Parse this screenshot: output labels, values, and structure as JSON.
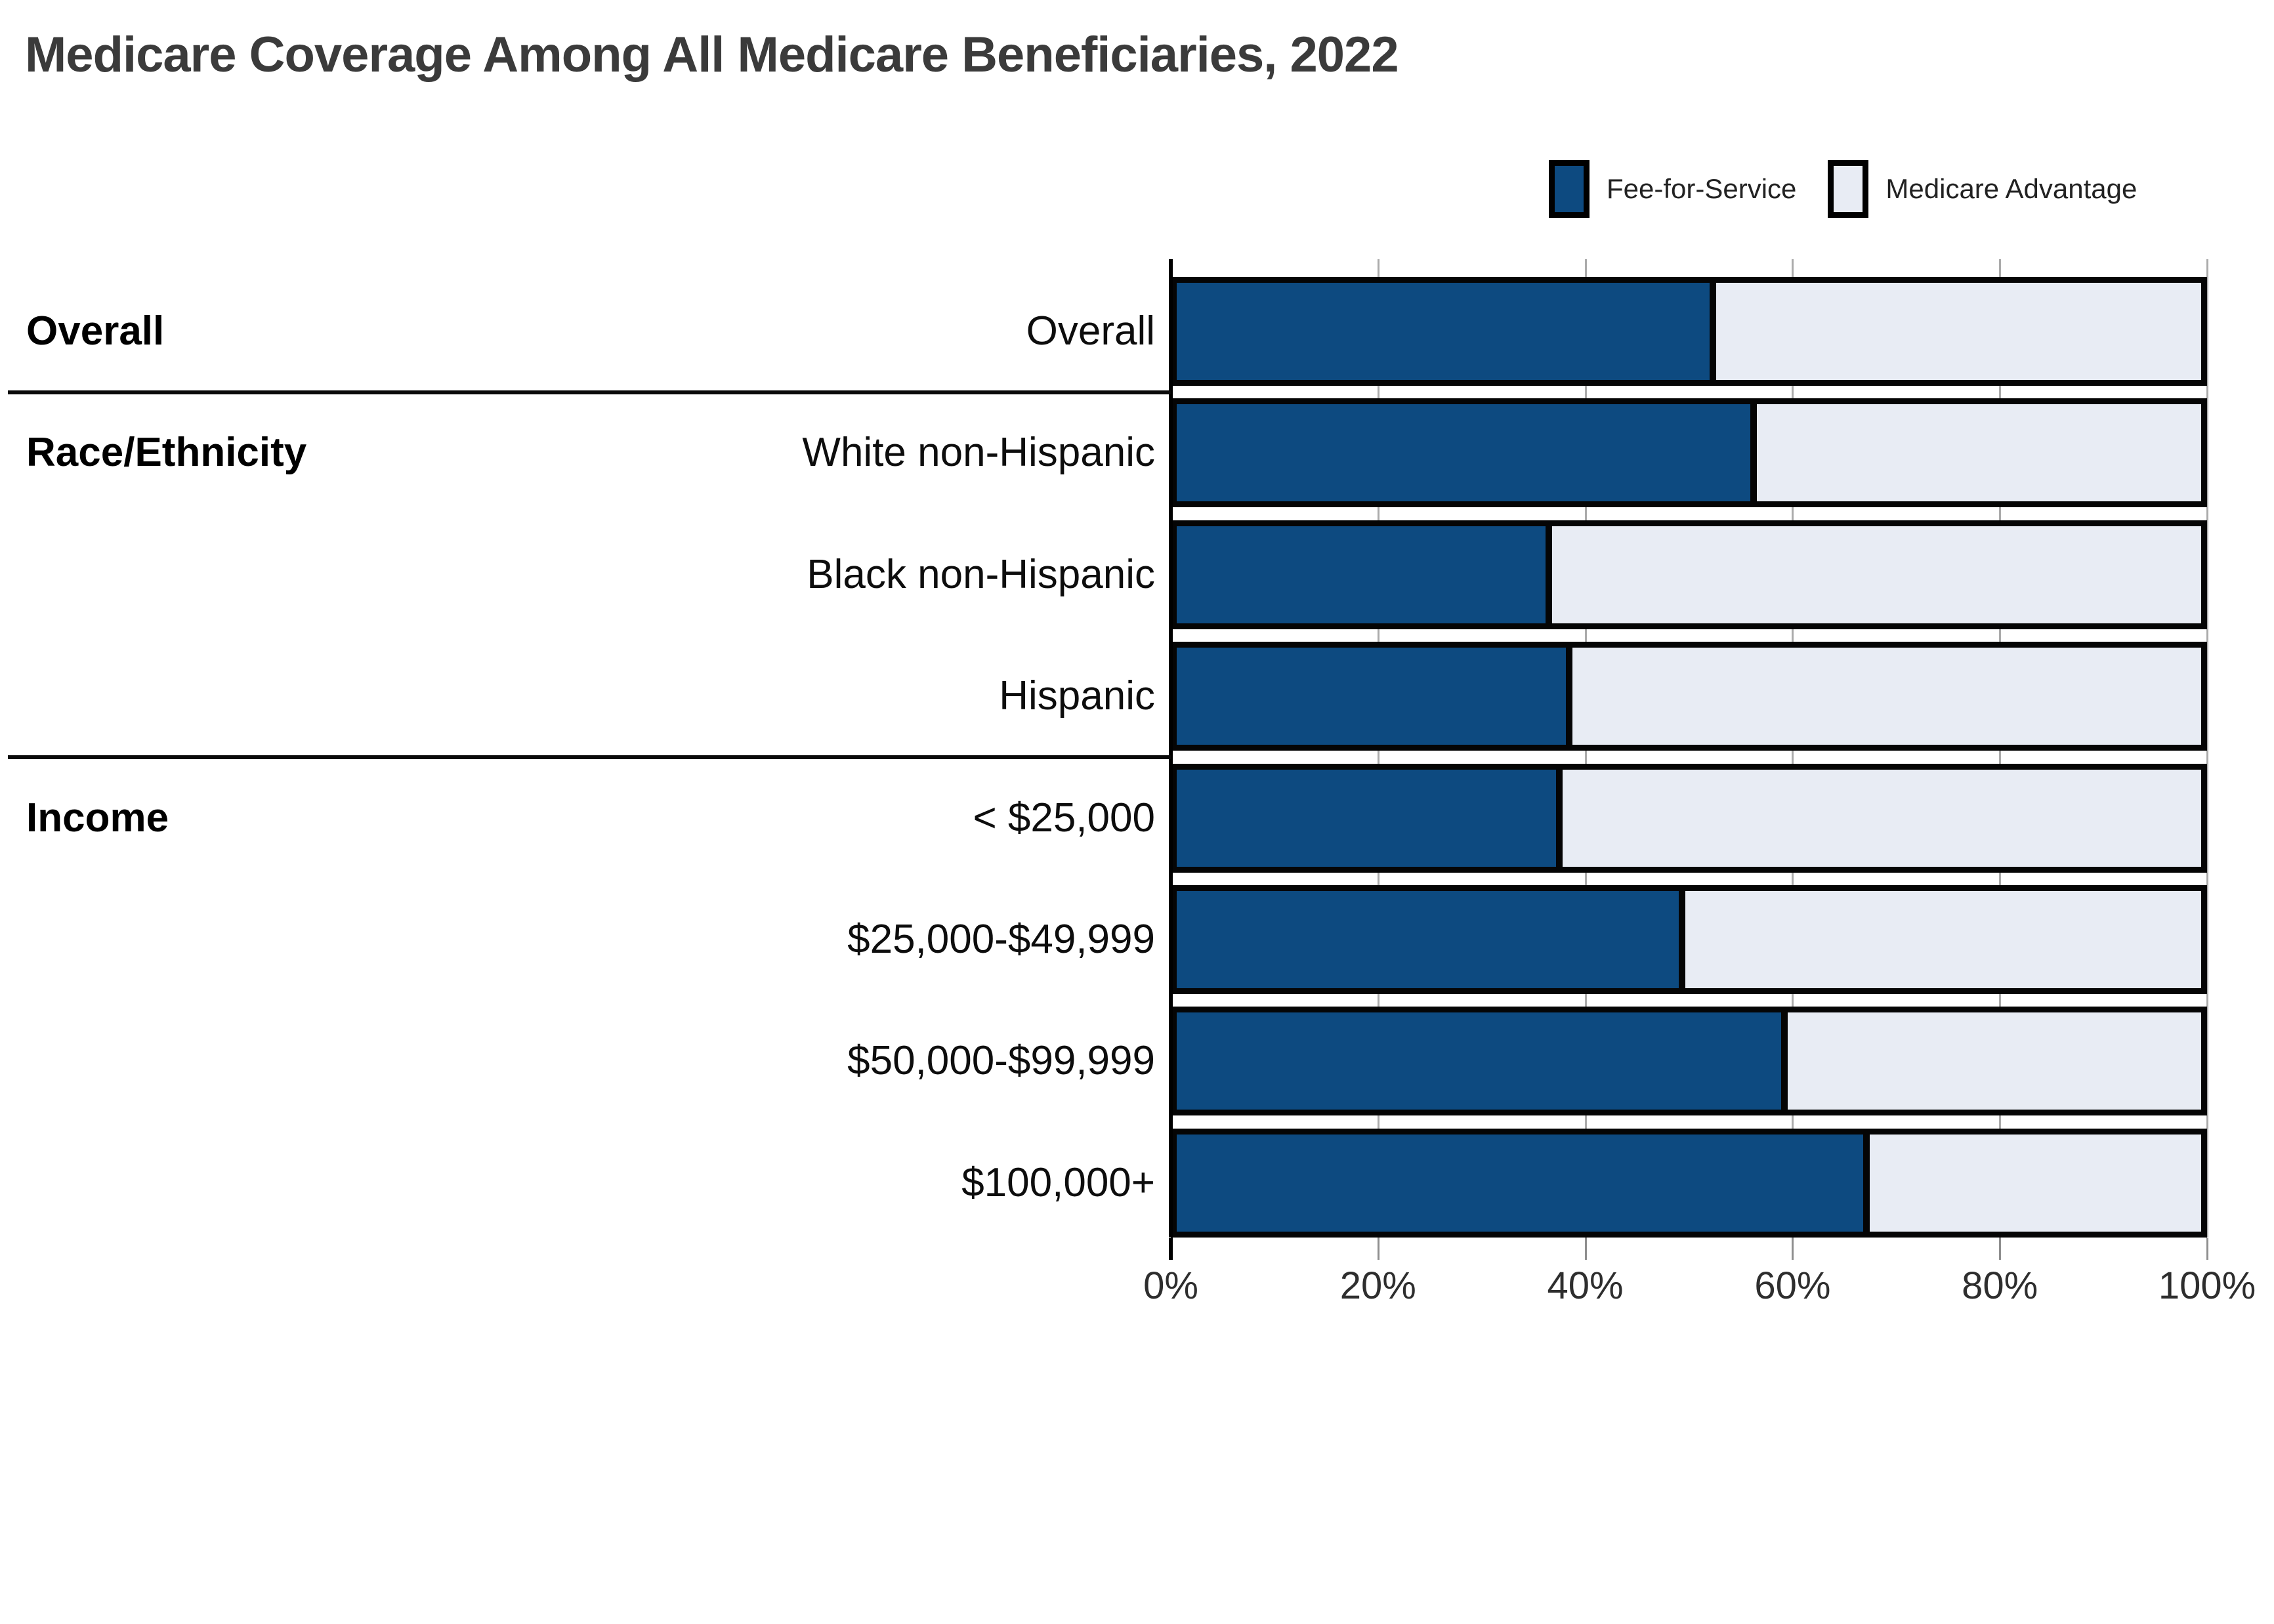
{
  "title": "Medicare Coverage Among All Medicare Beneficiaries, 2022",
  "legend": {
    "items": [
      {
        "label": "Fee-for-Service",
        "color": "#0d4a80"
      },
      {
        "label": "Medicare Advantage",
        "color": "#e8ecf4"
      }
    ]
  },
  "colors": {
    "fee_for_service": "#0d4a80",
    "medicare_advantage": "#e8ecf4",
    "bar_border": "#000000",
    "axis_line": "#000000",
    "gridline": "#ababab",
    "title_text": "#3b3b3b",
    "label_text": "#0d0d0d",
    "background": "#ffffff"
  },
  "chart_data": {
    "type": "bar",
    "orientation": "horizontal",
    "stacked": true,
    "title": "Medicare Coverage Among All Medicare Beneficiaries, 2022",
    "categories": [
      "Overall",
      "White non-Hispanic",
      "Black non-Hispanic",
      "Hispanic",
      "< $25,000",
      "$25,000-$49,999",
      "$50,000-$99,999",
      "$100,000+"
    ],
    "group_labels": [
      "Overall",
      "Race/Ethnicity",
      "",
      "",
      "Income",
      "",
      "",
      ""
    ],
    "groups": [
      {
        "label": "Overall",
        "categories": [
          "Overall"
        ]
      },
      {
        "label": "Race/Ethnicity",
        "categories": [
          "White non-Hispanic",
          "Black non-Hispanic",
          "Hispanic"
        ]
      },
      {
        "label": "Income",
        "categories": [
          "< $25,000",
          "$25,000-$49,999",
          "$50,000-$99,999",
          "$100,000+"
        ]
      }
    ],
    "series": [
      {
        "name": "Fee-for-Service",
        "values": [
          52,
          56,
          36,
          38,
          37,
          49,
          59,
          67
        ]
      },
      {
        "name": "Medicare Advantage",
        "values": [
          48,
          44,
          64,
          62,
          63,
          51,
          41,
          33
        ]
      }
    ],
    "x_ticks": [
      "0%",
      "20%",
      "40%",
      "60%",
      "80%",
      "100%"
    ],
    "xlim": [
      0,
      100
    ],
    "unit": "%",
    "legend_position": "top-right",
    "grid": "vertical"
  }
}
